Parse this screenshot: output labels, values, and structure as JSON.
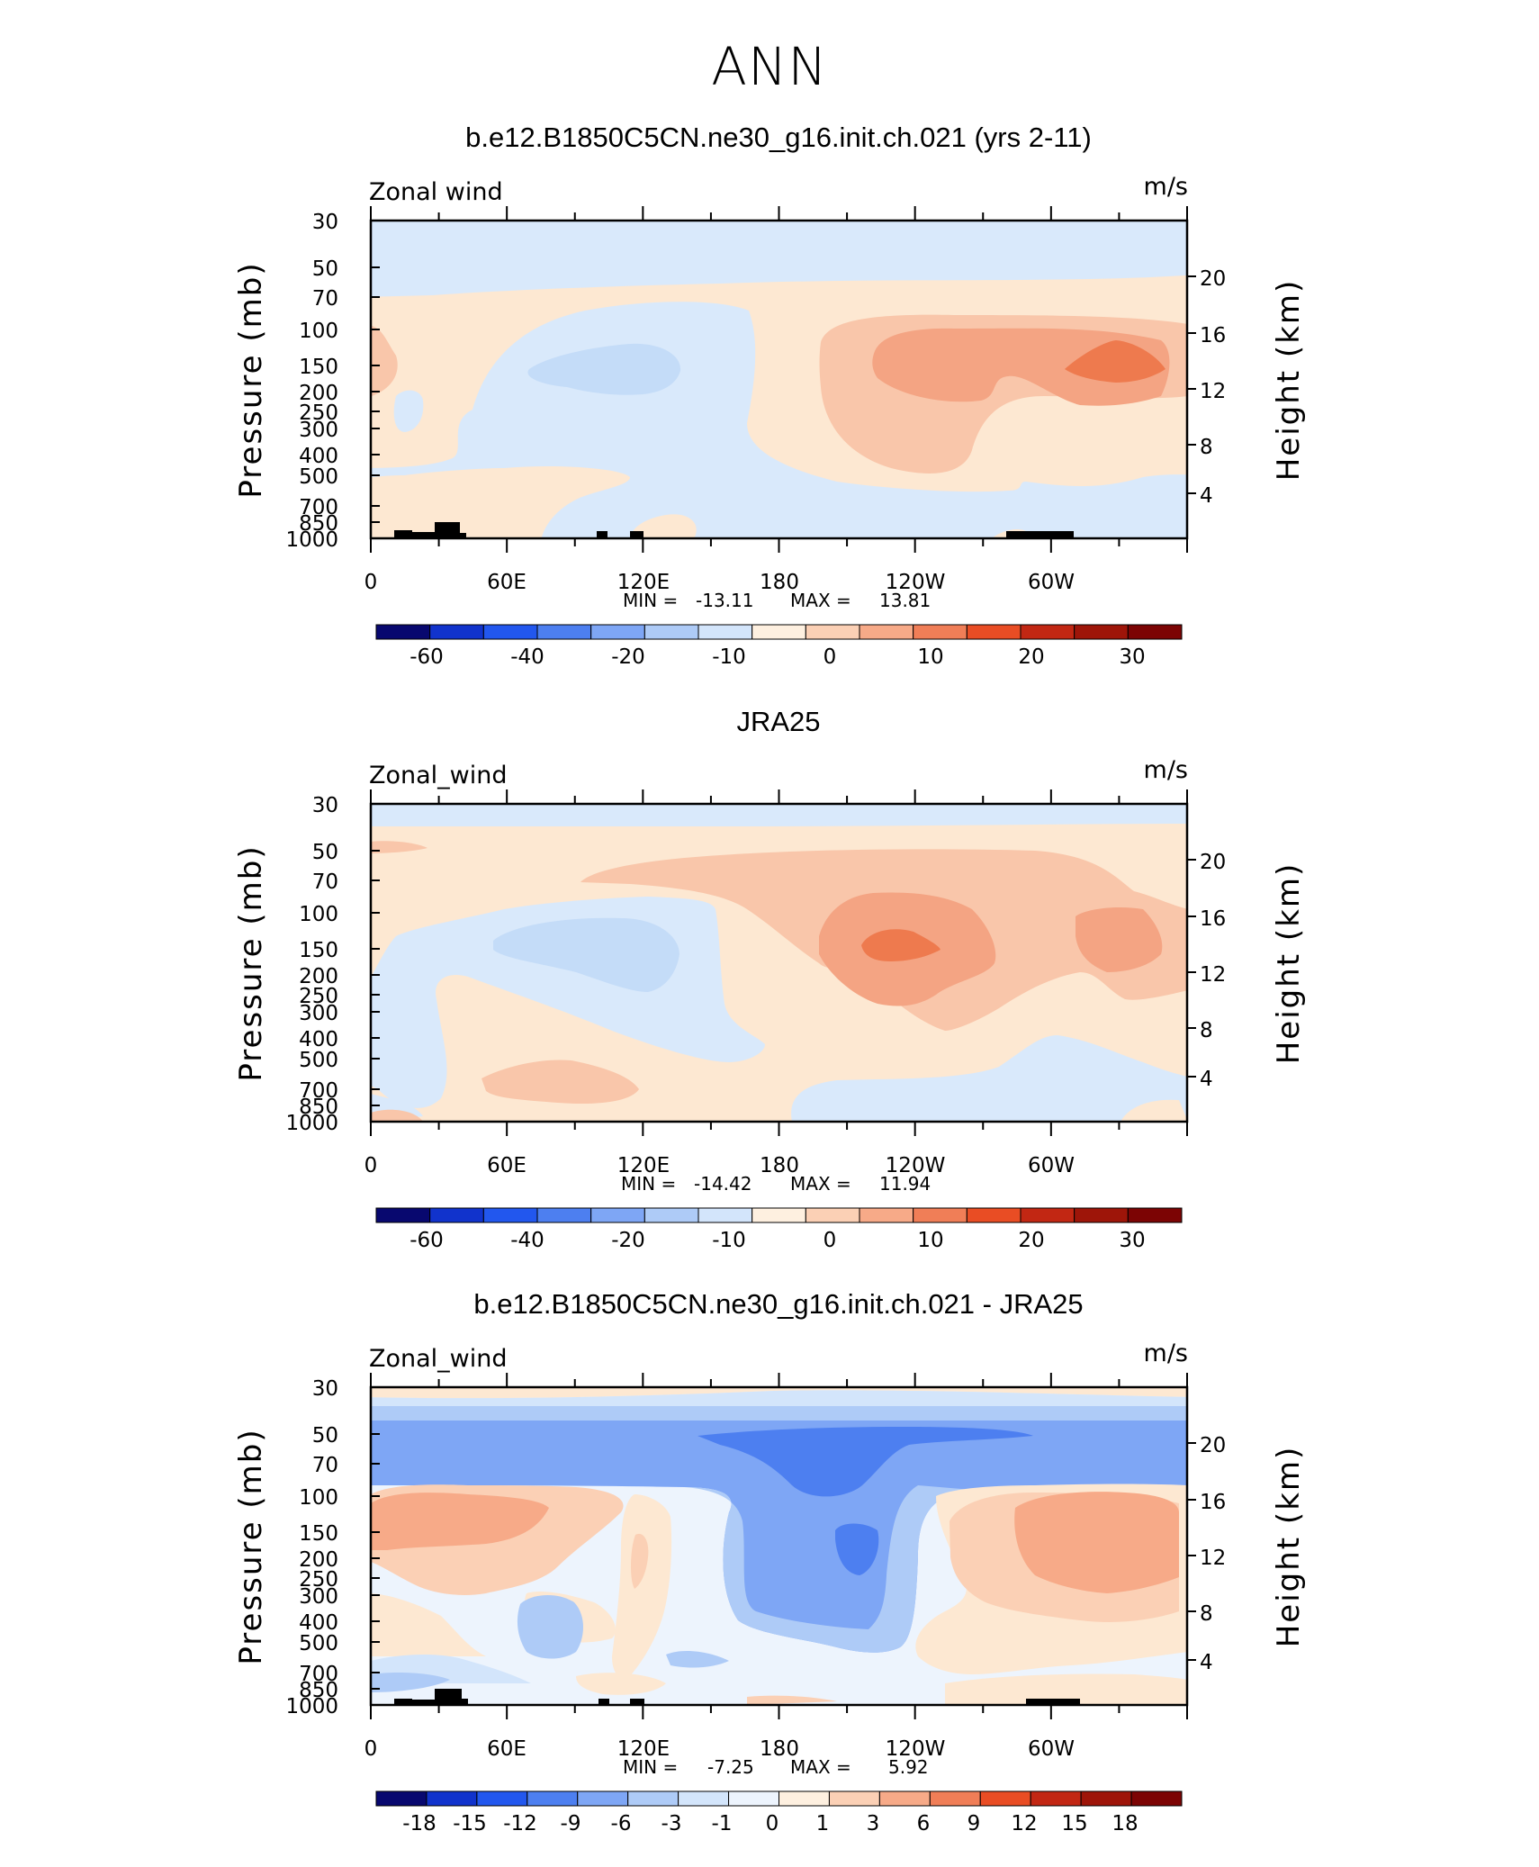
{
  "figure_title": "ANN",
  "colors": {
    "c0": "#c4dcf8",
    "c1": "#d9e9fb",
    "c2": "#fde8d2",
    "c3": "#f9c6aa",
    "c4": "#f4a483",
    "c5": "#ee7a4e",
    "b2": "#a9c8f5",
    "b3": "#8cb0f4",
    "b4": "#5a8cf2",
    "bdeep": "#2f64ea"
  },
  "chart_data": [
    {
      "type": "heatmap",
      "panel_title": "b.e12.B1850C5CN.ne30_g16.init.ch.021 (yrs 2-11)",
      "var_label": "Zonal wind",
      "units": "m/s",
      "ylabel": "Pressure (mb)",
      "y2label": "Height (km)",
      "pressure_ticks": [
        "30",
        "50",
        "70",
        "100",
        "150",
        "200",
        "250",
        "300",
        "400",
        "500",
        "700",
        "850",
        "1000"
      ],
      "height_ticks": [
        "20",
        "16",
        "12",
        "8",
        "4"
      ],
      "lon_ticks": [
        "0",
        "60E",
        "120E",
        "180",
        "120W",
        "60W"
      ],
      "min_label": "MIN = ",
      "min": "-13.11",
      "max_label": "MAX = ",
      "max": "13.81",
      "colorbar_labels": [
        "-60",
        "-40",
        "-20",
        "-10",
        "0",
        "10",
        "20",
        "30"
      ],
      "colorbar_colors": [
        "#08086f",
        "#1133cc",
        "#2257ee",
        "#4d7ff0",
        "#7ea6f5",
        "#aecbf7",
        "#d3e5fb",
        "#fef0e0",
        "#fbd0b5",
        "#f7aa88",
        "#f07e57",
        "#e94d24",
        "#c22713",
        "#9e1509",
        "#7c0404"
      ]
    },
    {
      "type": "heatmap",
      "panel_title": "JRA25",
      "var_label": "Zonal_wind",
      "units": "m/s",
      "ylabel": "Pressure (mb)",
      "y2label": "Height (km)",
      "pressure_ticks": [
        "30",
        "50",
        "70",
        "100",
        "150",
        "200",
        "250",
        "300",
        "400",
        "500",
        "700",
        "850",
        "1000"
      ],
      "height_ticks": [
        "20",
        "16",
        "12",
        "8",
        "4"
      ],
      "lon_ticks": [
        "0",
        "60E",
        "120E",
        "180",
        "120W",
        "60W"
      ],
      "min_label": "MIN = ",
      "min": "-14.42",
      "max_label": "MAX = ",
      "max": "11.94",
      "colorbar_labels": [
        "-60",
        "-40",
        "-20",
        "-10",
        "0",
        "10",
        "20",
        "30"
      ],
      "colorbar_colors": [
        "#08086f",
        "#1133cc",
        "#2257ee",
        "#4d7ff0",
        "#7ea6f5",
        "#aecbf7",
        "#d3e5fb",
        "#fef0e0",
        "#fbd0b5",
        "#f7aa88",
        "#f07e57",
        "#e94d24",
        "#c22713",
        "#9e1509",
        "#7c0404"
      ]
    },
    {
      "type": "heatmap",
      "panel_title": "b.e12.B1850C5CN.ne30_g16.init.ch.021 - JRA25",
      "var_label": "Zonal_wind",
      "units": "m/s",
      "ylabel": "Pressure (mb)",
      "y2label": "Height (km)",
      "pressure_ticks": [
        "30",
        "50",
        "70",
        "100",
        "150",
        "200",
        "250",
        "300",
        "400",
        "500",
        "700",
        "850",
        "1000"
      ],
      "height_ticks": [
        "20",
        "16",
        "12",
        "8",
        "4"
      ],
      "lon_ticks": [
        "0",
        "60E",
        "120E",
        "180",
        "120W",
        "60W"
      ],
      "min_label": "MIN = ",
      "min": "-7.25",
      "max_label": "MAX = ",
      "max": "5.92",
      "colorbar_labels": [
        "-18",
        "-15",
        "-12",
        "-9",
        "-6",
        "-3",
        "-1",
        "0",
        "1",
        "3",
        "6",
        "9",
        "12",
        "15",
        "18"
      ],
      "colorbar_colors": [
        "#08086f",
        "#1133cc",
        "#2257ee",
        "#4d7ff0",
        "#7ea6f5",
        "#aecbf7",
        "#d3e5fb",
        "#edf4fd",
        "#fef0e0",
        "#fbd0b5",
        "#f7aa88",
        "#f07e57",
        "#e94d24",
        "#c22713",
        "#9e1509",
        "#7c0404"
      ]
    }
  ]
}
